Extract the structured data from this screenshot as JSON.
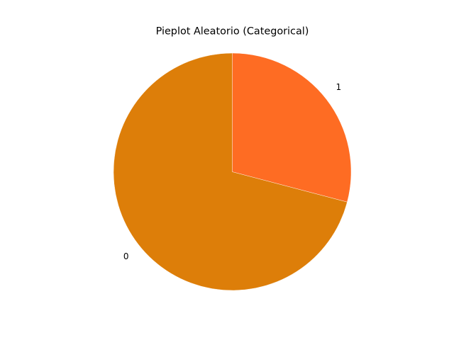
{
  "chart_data": {
    "type": "pie",
    "title": "Pieplot Aleatorio (Categorical)",
    "categories": [
      "0",
      "1"
    ],
    "values": [
      70.9,
      29.1
    ],
    "colors": [
      "#dd7e09",
      "#fe6c23"
    ],
    "start_angle_deg": 90,
    "counterclockwise": true,
    "legend": "none"
  }
}
